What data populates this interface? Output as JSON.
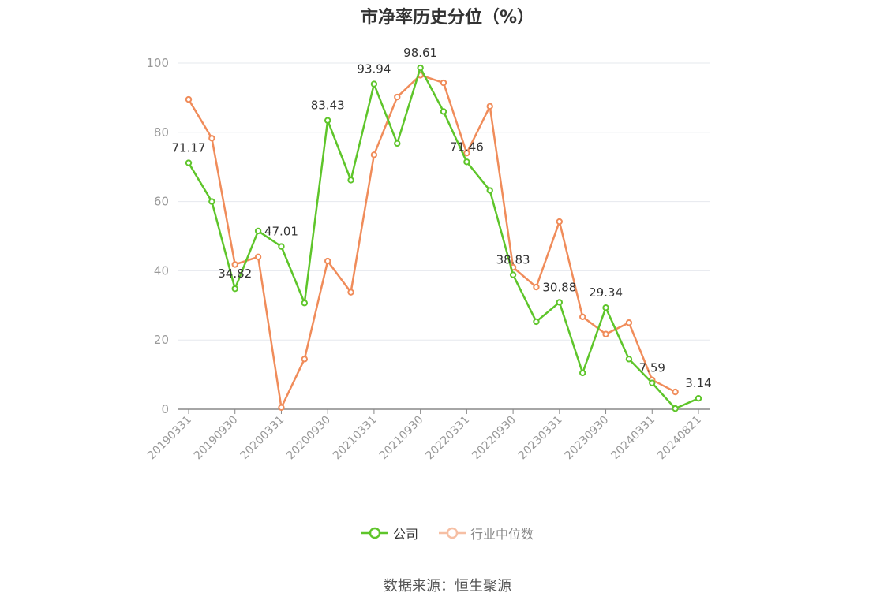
{
  "title": "市净率历史分位（%）",
  "source_label": "数据来源：恒生聚源",
  "colors": {
    "company": "#5ec52a",
    "industry": "#f08c5a",
    "grid": "#e6e8ee",
    "axis": "#999999",
    "label": "#333333"
  },
  "chart_data": {
    "type": "line",
    "title": "市净率历史分位（%）",
    "xlabel": "",
    "ylabel": "",
    "ylim": [
      0,
      100
    ],
    "yticks": [
      0,
      20,
      40,
      60,
      80,
      100
    ],
    "grid": true,
    "legend_position": "bottom",
    "x_tick_labels": [
      "20190331",
      "20190930",
      "20200331",
      "20200930",
      "20210331",
      "20210930",
      "20220331",
      "20220930",
      "20230331",
      "20230930",
      "20240331",
      "20240821"
    ],
    "x_tick_index": [
      0,
      2,
      4,
      6,
      8,
      10,
      12,
      14,
      16,
      18,
      20,
      22
    ],
    "x": [
      "20190331",
      "20190630",
      "20190930",
      "20191231",
      "20200331",
      "20200630",
      "20200930",
      "20201231",
      "20210331",
      "20210630",
      "20210930",
      "20211231",
      "20220331",
      "20220630",
      "20220930",
      "20221231",
      "20230331",
      "20230630",
      "20230930",
      "20231231",
      "20240331",
      "20240630",
      "20240821"
    ],
    "series": [
      {
        "name": "公司",
        "color": "#5ec52a",
        "values": [
          71.17,
          60.0,
          34.82,
          51.5,
          47.01,
          30.7,
          83.43,
          66.2,
          93.94,
          76.8,
          98.61,
          86.0,
          71.46,
          63.2,
          38.83,
          25.3,
          30.88,
          10.5,
          29.34,
          14.5,
          7.59,
          0.2,
          3.14
        ],
        "point_labels": [
          {
            "index": 0,
            "text": "71.17"
          },
          {
            "index": 2,
            "text": "34.82"
          },
          {
            "index": 4,
            "text": "47.01"
          },
          {
            "index": 6,
            "text": "83.43"
          },
          {
            "index": 8,
            "text": "93.94"
          },
          {
            "index": 10,
            "text": "98.61"
          },
          {
            "index": 12,
            "text": "71.46"
          },
          {
            "index": 14,
            "text": "38.83"
          },
          {
            "index": 16,
            "text": "30.88"
          },
          {
            "index": 18,
            "text": "29.34"
          },
          {
            "index": 20,
            "text": "7.59"
          },
          {
            "index": 22,
            "text": "3.14"
          }
        ]
      },
      {
        "name": "行业中位数",
        "color": "#f08c5a",
        "values": [
          89.5,
          78.3,
          41.8,
          44.0,
          0.5,
          14.5,
          42.8,
          33.8,
          73.5,
          90.2,
          96.5,
          94.3,
          74.0,
          87.5,
          41.0,
          35.3,
          54.2,
          26.7,
          21.7,
          25.0,
          8.5,
          5.0,
          null
        ]
      }
    ]
  }
}
